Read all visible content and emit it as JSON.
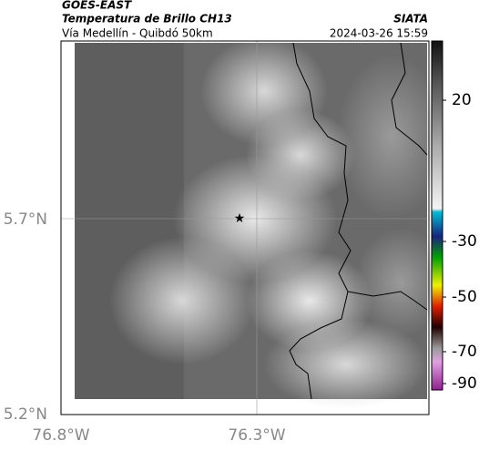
{
  "header": {
    "title_top": "GOES-EAST",
    "title": "Temperatura de Brillo CH13",
    "subtitle": "Vía Medellín - Quibdó 50km",
    "source": "SIATA",
    "datetime": "2024-03-26 15:59"
  },
  "map": {
    "lat_labels": [
      "5.7°N",
      "5.2°N"
    ],
    "lon_labels": [
      "76.8°W",
      "76.3°W"
    ]
  },
  "colorbar": {
    "ticks": [
      "20",
      "-30",
      "-50",
      "-70",
      "-90"
    ]
  }
}
